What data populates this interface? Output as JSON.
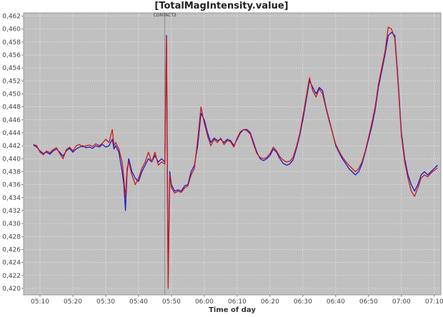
{
  "chart_data": {
    "type": "line",
    "title": "[TotalMagIntensity.value]",
    "xlabel": "Time of day",
    "ylabel": "",
    "xlim": [
      "05:05",
      "07:12"
    ],
    "ylim": [
      0.419,
      0.4625
    ],
    "grid": true,
    "legend": "none",
    "x_ticks": [
      "05:10",
      "05:20",
      "05:30",
      "05:40",
      "05:50",
      "06:00",
      "06:10",
      "06:20",
      "06:30",
      "06:40",
      "06:50",
      "07:00",
      "07:10"
    ],
    "y_ticks": [
      "0,420",
      "0,422",
      "0,424",
      "0,426",
      "0,428",
      "0,430",
      "0,432",
      "0,434",
      "0,436",
      "0,438",
      "0,440",
      "0,442",
      "0,444",
      "0,446",
      "0,448",
      "0,450",
      "0,452",
      "0,454",
      "0,456",
      "0,458",
      "0,460",
      "0,462"
    ],
    "y_tick_values": [
      0.42,
      0.422,
      0.424,
      0.426,
      0.428,
      0.43,
      0.432,
      0.434,
      0.436,
      0.438,
      0.44,
      0.442,
      0.444,
      0.446,
      0.448,
      0.45,
      0.452,
      0.454,
      0.456,
      0.458,
      0.46,
      0.462
    ],
    "annotations": [
      {
        "x": "05:48",
        "text": "CONTACT2"
      }
    ],
    "series": [
      {
        "color": "#1a1acc",
        "points": [
          [
            "05:08",
            0.4421
          ],
          [
            "05:09",
            0.4418
          ],
          [
            "05:10",
            0.4412
          ],
          [
            "05:11",
            0.4408
          ],
          [
            "05:12",
            0.441
          ],
          [
            "05:13",
            0.4407
          ],
          [
            "05:14",
            0.4412
          ],
          [
            "05:15",
            0.4415
          ],
          [
            "05:16",
            0.441
          ],
          [
            "05:17",
            0.4404
          ],
          [
            "05:18",
            0.4412
          ],
          [
            "05:19",
            0.4416
          ],
          [
            "05:20",
            0.441
          ],
          [
            "05:21",
            0.4415
          ],
          [
            "05:22",
            0.4418
          ],
          [
            "05:23",
            0.442
          ],
          [
            "05:24",
            0.4417
          ],
          [
            "05:25",
            0.4418
          ],
          [
            "05:26",
            0.4416
          ],
          [
            "05:27",
            0.442
          ],
          [
            "05:28",
            0.4418
          ],
          [
            "05:29",
            0.4422
          ],
          [
            "05:30",
            0.4418
          ],
          [
            "05:31",
            0.442
          ],
          [
            "05:32",
            0.443
          ],
          [
            "05:32.5",
            0.4415
          ],
          [
            "05:33",
            0.442
          ],
          [
            "05:34",
            0.441
          ],
          [
            "05:35",
            0.438
          ],
          [
            "05:35.5",
            0.436
          ],
          [
            "05:36",
            0.432
          ],
          [
            "05:36.5",
            0.438
          ],
          [
            "05:37",
            0.44
          ],
          [
            "05:38",
            0.438
          ],
          [
            "05:39",
            0.437
          ],
          [
            "05:40",
            0.4365
          ],
          [
            "05:41",
            0.438
          ],
          [
            "05:42",
            0.439
          ],
          [
            "05:43",
            0.44
          ],
          [
            "05:44",
            0.4395
          ],
          [
            "05:45",
            0.4405
          ],
          [
            "05:46",
            0.4395
          ],
          [
            "05:47",
            0.44
          ],
          [
            "05:48",
            0.4395
          ],
          [
            "05:48.5",
            0.459
          ],
          [
            "05:49",
            0.421
          ],
          [
            "05:49.5",
            0.438
          ],
          [
            "05:50",
            0.436
          ],
          [
            "05:51",
            0.435
          ],
          [
            "05:52",
            0.4352
          ],
          [
            "05:53",
            0.435
          ],
          [
            "05:54",
            0.4358
          ],
          [
            "05:55",
            0.436
          ],
          [
            "05:56",
            0.438
          ],
          [
            "05:57",
            0.439
          ],
          [
            "05:58",
            0.442
          ],
          [
            "05:59",
            0.447
          ],
          [
            "06:00",
            0.446
          ],
          [
            "06:01",
            0.444
          ],
          [
            "06:02",
            0.4425
          ],
          [
            "06:03",
            0.4432
          ],
          [
            "06:04",
            0.4428
          ],
          [
            "06:05",
            0.443
          ],
          [
            "06:06",
            0.4425
          ],
          [
            "06:07",
            0.443
          ],
          [
            "06:08",
            0.4428
          ],
          [
            "06:09",
            0.442
          ],
          [
            "06:10",
            0.443
          ],
          [
            "06:11",
            0.444
          ],
          [
            "06:12",
            0.4445
          ],
          [
            "06:13",
            0.4445
          ],
          [
            "06:14",
            0.444
          ],
          [
            "06:15",
            0.4425
          ],
          [
            "06:16",
            0.441
          ],
          [
            "06:17",
            0.44
          ],
          [
            "06:18",
            0.4397
          ],
          [
            "06:19",
            0.44
          ],
          [
            "06:20",
            0.4405
          ],
          [
            "06:21",
            0.4415
          ],
          [
            "06:22",
            0.441
          ],
          [
            "06:23",
            0.44
          ],
          [
            "06:24",
            0.4393
          ],
          [
            "06:25",
            0.439
          ],
          [
            "06:26",
            0.4392
          ],
          [
            "06:27",
            0.4398
          ],
          [
            "06:28",
            0.4415
          ],
          [
            "06:29",
            0.4435
          ],
          [
            "06:30",
            0.446
          ],
          [
            "06:31",
            0.449
          ],
          [
            "06:32",
            0.452
          ],
          [
            "06:33",
            0.451
          ],
          [
            "06:34",
            0.45
          ],
          [
            "06:35",
            0.451
          ],
          [
            "06:36",
            0.4505
          ],
          [
            "06:37",
            0.448
          ],
          [
            "06:38",
            0.446
          ],
          [
            "06:39",
            0.444
          ],
          [
            "06:40",
            0.442
          ],
          [
            "06:41",
            0.441
          ],
          [
            "06:42",
            0.44
          ],
          [
            "06:43",
            0.4393
          ],
          [
            "06:44",
            0.4385
          ],
          [
            "06:45",
            0.438
          ],
          [
            "06:46",
            0.4375
          ],
          [
            "06:47",
            0.438
          ],
          [
            "06:48",
            0.4392
          ],
          [
            "06:49",
            0.441
          ],
          [
            "06:50",
            0.443
          ],
          [
            "06:51",
            0.445
          ],
          [
            "06:52",
            0.4475
          ],
          [
            "06:53",
            0.451
          ],
          [
            "06:54",
            0.4535
          ],
          [
            "06:55",
            0.456
          ],
          [
            "06:56",
            0.459
          ],
          [
            "06:57",
            0.4595
          ],
          [
            "06:58",
            0.459
          ],
          [
            "06:59",
            0.452
          ],
          [
            "07:00",
            0.444
          ],
          [
            "07:01",
            0.44
          ],
          [
            "07:02",
            0.4375
          ],
          [
            "07:03",
            0.436
          ],
          [
            "07:04",
            0.435
          ],
          [
            "07:05",
            0.436
          ],
          [
            "07:06",
            0.4375
          ],
          [
            "07:07",
            0.438
          ],
          [
            "07:08",
            0.4375
          ],
          [
            "07:09",
            0.438
          ],
          [
            "07:10",
            0.4385
          ],
          [
            "07:11",
            0.439
          ]
        ]
      },
      {
        "color": "#cc1a1a",
        "points": [
          [
            "05:08",
            0.4422
          ],
          [
            "05:09",
            0.442
          ],
          [
            "05:10",
            0.441
          ],
          [
            "05:11",
            0.4406
          ],
          [
            "05:12",
            0.4412
          ],
          [
            "05:13",
            0.4409
          ],
          [
            "05:14",
            0.4414
          ],
          [
            "05:15",
            0.4417
          ],
          [
            "05:16",
            0.4408
          ],
          [
            "05:17",
            0.44
          ],
          [
            "05:18",
            0.4414
          ],
          [
            "05:19",
            0.4418
          ],
          [
            "05:20",
            0.4412
          ],
          [
            "05:21",
            0.442
          ],
          [
            "05:22",
            0.4422
          ],
          [
            "05:23",
            0.4418
          ],
          [
            "05:24",
            0.442
          ],
          [
            "05:25",
            0.4421
          ],
          [
            "05:26",
            0.4419
          ],
          [
            "05:27",
            0.4423
          ],
          [
            "05:28",
            0.442
          ],
          [
            "05:29",
            0.4424
          ],
          [
            "05:30",
            0.443
          ],
          [
            "05:31",
            0.4425
          ],
          [
            "05:32",
            0.4445
          ],
          [
            "05:32.5",
            0.442
          ],
          [
            "05:33",
            0.4425
          ],
          [
            "05:34",
            0.4415
          ],
          [
            "05:35",
            0.4395
          ],
          [
            "05:35.5",
            0.437
          ],
          [
            "05:36",
            0.434
          ],
          [
            "05:36.5",
            0.4385
          ],
          [
            "05:37",
            0.4395
          ],
          [
            "05:38",
            0.4375
          ],
          [
            "05:39",
            0.436
          ],
          [
            "05:40",
            0.437
          ],
          [
            "05:41",
            0.4385
          ],
          [
            "05:42",
            0.4395
          ],
          [
            "05:43",
            0.441
          ],
          [
            "05:44",
            0.4395
          ],
          [
            "05:45",
            0.441
          ],
          [
            "05:46",
            0.439
          ],
          [
            "05:47",
            0.4395
          ],
          [
            "05:48",
            0.4392
          ],
          [
            "05:48.5",
            0.4587
          ],
          [
            "05:49",
            0.42
          ],
          [
            "05:49.5",
            0.4375
          ],
          [
            "05:50",
            0.4355
          ],
          [
            "05:51",
            0.4347
          ],
          [
            "05:52",
            0.435
          ],
          [
            "05:53",
            0.4348
          ],
          [
            "05:54",
            0.4355
          ],
          [
            "05:55",
            0.4358
          ],
          [
            "05:56",
            0.4375
          ],
          [
            "05:57",
            0.4385
          ],
          [
            "05:58",
            0.443
          ],
          [
            "05:59",
            0.448
          ],
          [
            "06:00",
            0.4455
          ],
          [
            "06:01",
            0.4435
          ],
          [
            "06:02",
            0.442
          ],
          [
            "06:03",
            0.443
          ],
          [
            "06:04",
            0.4425
          ],
          [
            "06:05",
            0.4432
          ],
          [
            "06:06",
            0.4422
          ],
          [
            "06:07",
            0.4428
          ],
          [
            "06:08",
            0.4426
          ],
          [
            "06:09",
            0.4418
          ],
          [
            "06:10",
            0.4432
          ],
          [
            "06:11",
            0.4442
          ],
          [
            "06:12",
            0.4445
          ],
          [
            "06:13",
            0.4443
          ],
          [
            "06:14",
            0.4438
          ],
          [
            "06:15",
            0.4422
          ],
          [
            "06:16",
            0.4408
          ],
          [
            "06:17",
            0.4402
          ],
          [
            "06:18",
            0.44
          ],
          [
            "06:19",
            0.4402
          ],
          [
            "06:20",
            0.4408
          ],
          [
            "06:21",
            0.4418
          ],
          [
            "06:22",
            0.4412
          ],
          [
            "06:23",
            0.4403
          ],
          [
            "06:24",
            0.4398
          ],
          [
            "06:25",
            0.4395
          ],
          [
            "06:26",
            0.4396
          ],
          [
            "06:27",
            0.4402
          ],
          [
            "06:28",
            0.4418
          ],
          [
            "06:29",
            0.4438
          ],
          [
            "06:30",
            0.4465
          ],
          [
            "06:31",
            0.4495
          ],
          [
            "06:32",
            0.4525
          ],
          [
            "06:33",
            0.4505
          ],
          [
            "06:34",
            0.4495
          ],
          [
            "06:35",
            0.4508
          ],
          [
            "06:36",
            0.45
          ],
          [
            "06:37",
            0.4478
          ],
          [
            "06:38",
            0.4458
          ],
          [
            "06:39",
            0.444
          ],
          [
            "06:40",
            0.4422
          ],
          [
            "06:41",
            0.4412
          ],
          [
            "06:42",
            0.4403
          ],
          [
            "06:43",
            0.4396
          ],
          [
            "06:44",
            0.439
          ],
          [
            "06:45",
            0.4385
          ],
          [
            "06:46",
            0.438
          ],
          [
            "06:47",
            0.4385
          ],
          [
            "06:48",
            0.4395
          ],
          [
            "06:49",
            0.4412
          ],
          [
            "06:50",
            0.4433
          ],
          [
            "06:51",
            0.4455
          ],
          [
            "06:52",
            0.448
          ],
          [
            "06:53",
            0.4515
          ],
          [
            "06:54",
            0.454
          ],
          [
            "06:55",
            0.4565
          ],
          [
            "06:56",
            0.4603
          ],
          [
            "06:57",
            0.46
          ],
          [
            "06:58",
            0.4585
          ],
          [
            "06:59",
            0.4515
          ],
          [
            "07:00",
            0.4435
          ],
          [
            "07:01",
            0.4395
          ],
          [
            "07:02",
            0.437
          ],
          [
            "07:03",
            0.435
          ],
          [
            "07:04",
            0.4342
          ],
          [
            "07:05",
            0.4355
          ],
          [
            "07:06",
            0.437
          ],
          [
            "07:07",
            0.4375
          ],
          [
            "07:08",
            0.4372
          ],
          [
            "07:09",
            0.4378
          ],
          [
            "07:10",
            0.4382
          ],
          [
            "07:11",
            0.4386
          ]
        ]
      }
    ]
  }
}
